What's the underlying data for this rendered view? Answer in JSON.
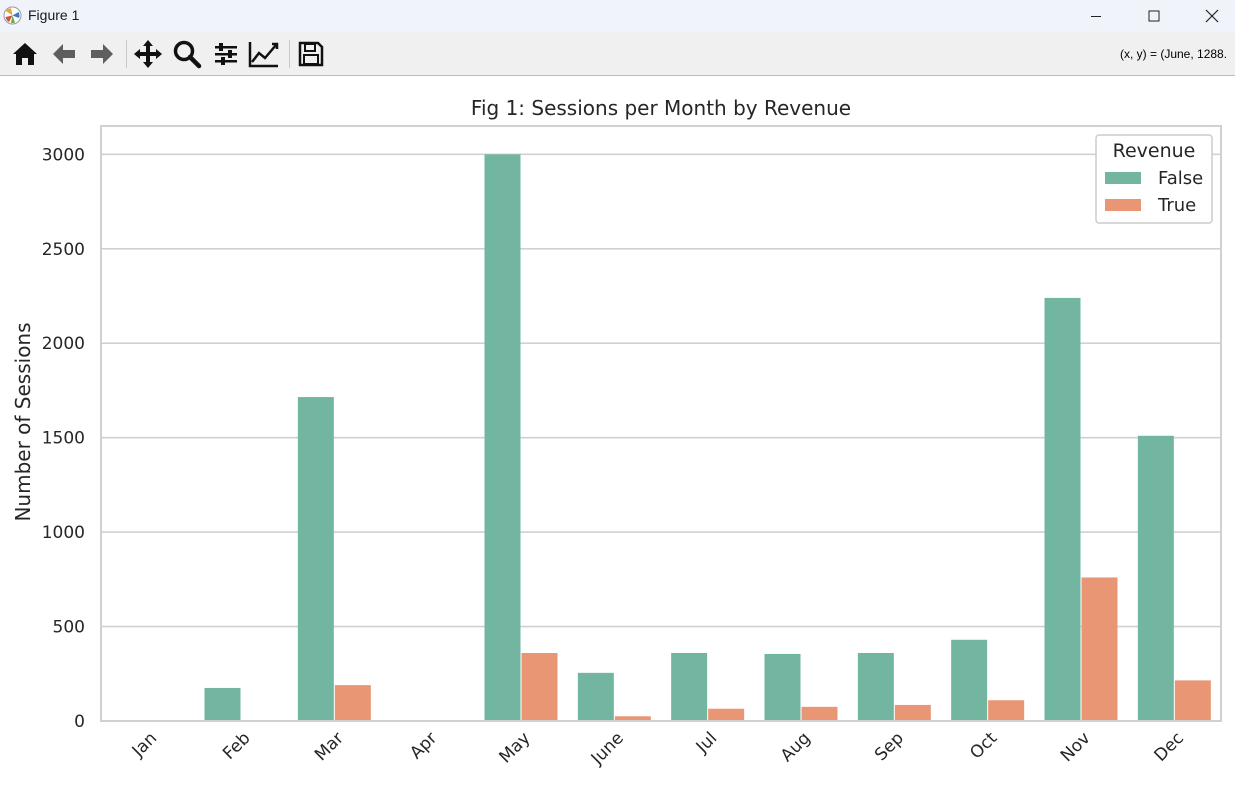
{
  "window": {
    "title": "Figure 1"
  },
  "toolbar": {
    "coord_readout": "(x, y) = (June, 1288.",
    "buttons": [
      "home-icon",
      "back-arrow-icon",
      "forward-arrow-icon",
      "pan-move-icon",
      "zoom-magnifier-icon",
      "configure-subplots-icon",
      "edit-axis-lines-icon",
      "save-floppy-icon"
    ]
  },
  "chart_data": {
    "type": "bar",
    "title": "Fig 1: Sessions per Month by Revenue",
    "xlabel": "",
    "ylabel": "Number of Sessions",
    "categories": [
      "Jan",
      "Feb",
      "Mar",
      "Apr",
      "May",
      "June",
      "Jul",
      "Aug",
      "Sep",
      "Oct",
      "Nov",
      "Dec"
    ],
    "series": [
      {
        "name": "False",
        "color": "#72b6a1",
        "values": [
          0,
          175,
          1715,
          0,
          3000,
          255,
          360,
          355,
          360,
          430,
          2240,
          1510
        ]
      },
      {
        "name": "True",
        "color": "#e99675",
        "values": [
          0,
          0,
          190,
          0,
          360,
          25,
          65,
          75,
          85,
          110,
          760,
          215
        ]
      }
    ],
    "legend": {
      "title": "Revenue",
      "position": "top-right"
    },
    "ylim": [
      0,
      3150
    ],
    "yticks": [
      0,
      500,
      1000,
      1500,
      2000,
      2500,
      3000
    ],
    "grid": "horizontal"
  }
}
